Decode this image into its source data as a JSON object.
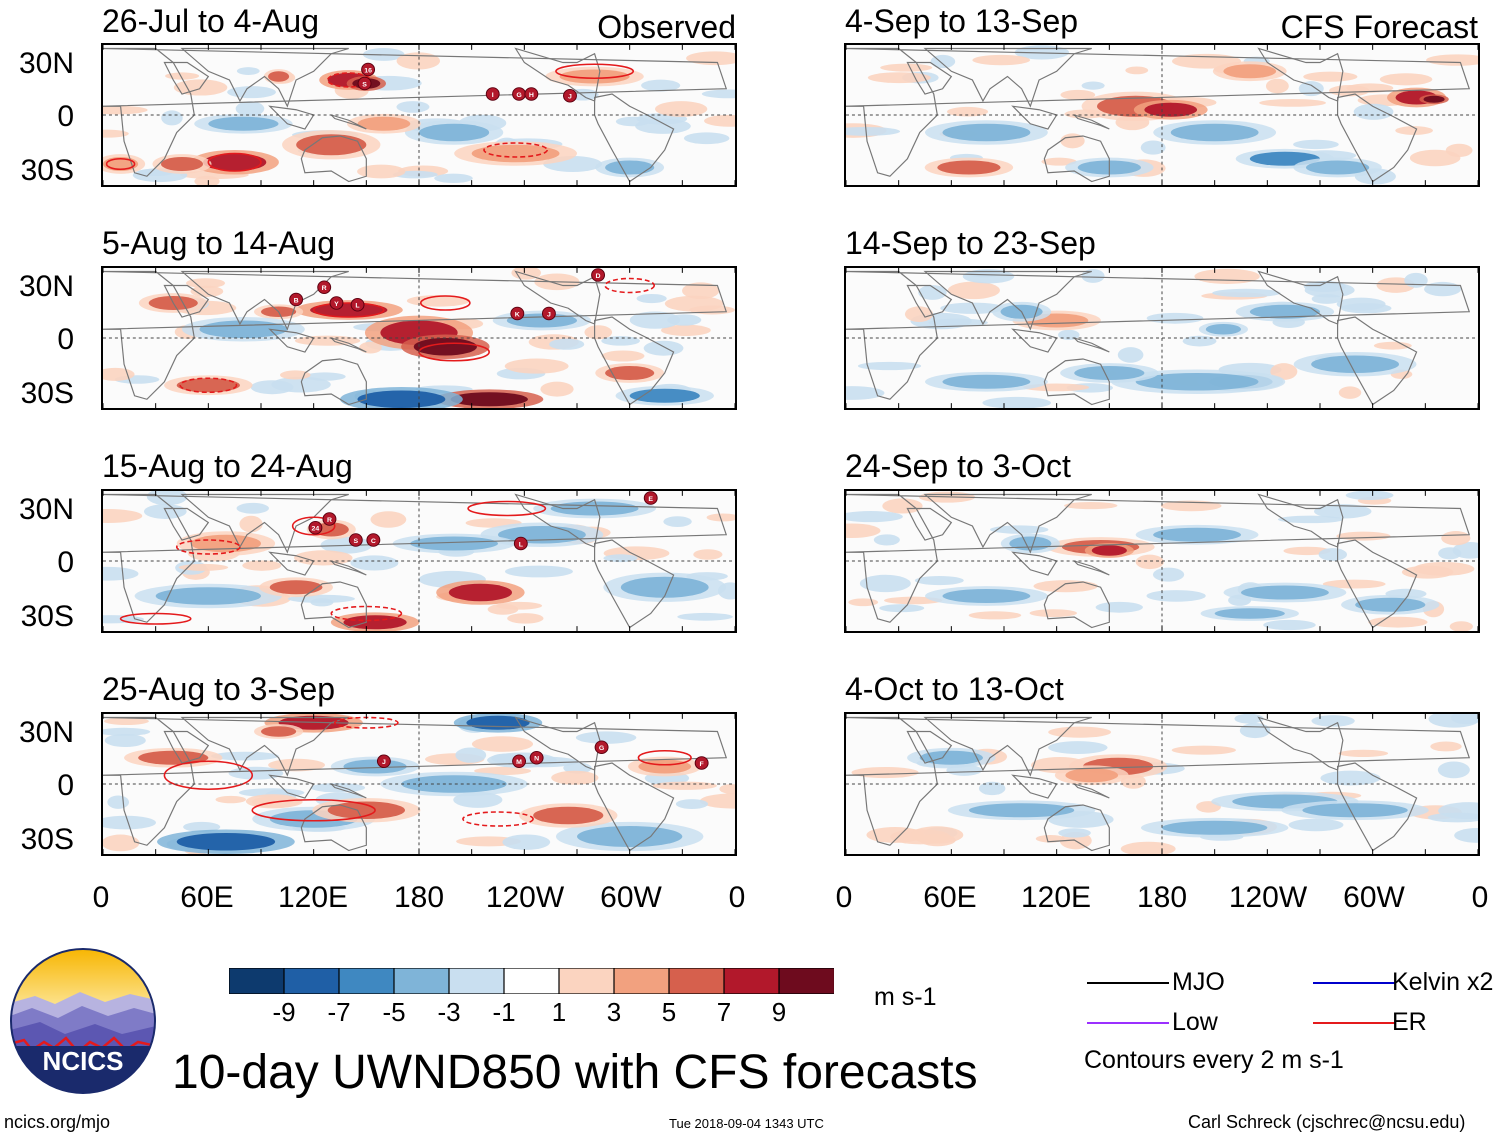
{
  "chart_data": {
    "type": "heatmap",
    "title": "10-day UWND850 with CFS forecasts",
    "variable": "850-hPa zonal wind anomaly",
    "units": "m s-1",
    "contour_note": "Contours every 2 m s-1",
    "lat_ticks": [
      "30N",
      "0",
      "30S"
    ],
    "lon_ticks": [
      "0",
      "60E",
      "120E",
      "180",
      "120W",
      "60W",
      "0"
    ],
    "colorbar": {
      "ticks": [
        "-9",
        "-7",
        "-5",
        "-3",
        "-1",
        "1",
        "3",
        "5",
        "7",
        "9"
      ],
      "colors": [
        "#0d3a6e",
        "#1f5fa6",
        "#3f88c1",
        "#7fb4d8",
        "#c9dff0",
        "#ffffff",
        "#fbd4c0",
        "#f2a17f",
        "#d6604d",
        "#b2182b",
        "#6e0b1e"
      ]
    },
    "columns": [
      {
        "label": "Observed"
      },
      {
        "label": "CFS Forecast"
      }
    ],
    "panels": [
      {
        "period": "26-Jul to 4-Aug",
        "column": "Observed",
        "storms": [
          "16",
          "S",
          "I",
          "G",
          "H",
          "J"
        ]
      },
      {
        "period": "5-Aug to 14-Aug",
        "column": "Observed",
        "storms": [
          "B",
          "R",
          "Y",
          "L",
          "K",
          "J",
          "D"
        ]
      },
      {
        "period": "15-Aug to 24-Aug",
        "column": "Observed",
        "storms": [
          "24",
          "R",
          "S",
          "C",
          "L",
          "E"
        ]
      },
      {
        "period": "25-Aug to 3-Sep",
        "column": "Observed",
        "storms": [
          "J",
          "M",
          "N",
          "G",
          "F"
        ]
      },
      {
        "period": "4-Sep to 13-Sep",
        "column": "CFS Forecast",
        "storms": []
      },
      {
        "period": "14-Sep to 23-Sep",
        "column": "CFS Forecast",
        "storms": []
      },
      {
        "period": "24-Sep to 3-Oct",
        "column": "CFS Forecast",
        "storms": []
      },
      {
        "period": "4-Oct to 13-Oct",
        "column": "CFS Forecast",
        "storms": []
      }
    ],
    "legend": [
      {
        "label": "MJO",
        "color": "#000000"
      },
      {
        "label": "Kelvin x2",
        "color": "#0000cc"
      },
      {
        "label": "Low",
        "color": "#9b30ff"
      },
      {
        "label": "ER",
        "color": "#e41a1c"
      }
    ]
  },
  "header": {
    "observed_label": "Observed",
    "forecast_label": "CFS Forecast"
  },
  "footer": {
    "main_title": "10-day UWND850 with CFS forecasts",
    "units": "m s-1",
    "contours_note": "Contours every 2 m s-1",
    "logo_text": "NCICS",
    "website": "ncics.org/mjo",
    "timestamp": "Tue 2018-09-04 1343 UTC",
    "credit": "Carl Schreck (cjschrec@ncsu.edu)"
  }
}
